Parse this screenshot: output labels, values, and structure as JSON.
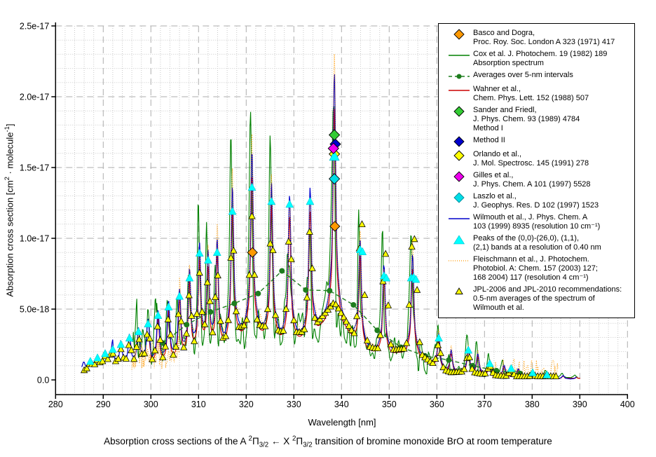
{
  "caption_segments": [
    {
      "t": "Absorption cross sections of the A "
    },
    {
      "t": "2",
      "s": "sup"
    },
    {
      "t": "Π"
    },
    {
      "t": "3/2",
      "s": "sub"
    },
    {
      "t": " ← X "
    },
    {
      "t": "2",
      "s": "sup"
    },
    {
      "t": "Π"
    },
    {
      "t": "3/2",
      "s": "sub"
    },
    {
      "t": " transition of bromine monoxide BrO at room temperature"
    }
  ],
  "chart": {
    "colors": {
      "blue_line": "#0000cc",
      "red_line": "#cc0000",
      "green_line": "#008000",
      "avg_green": "#1e7d1e",
      "orange": "#ff9900",
      "yellow": "#ffff00",
      "cyan": "#00ffff",
      "magenta": "#ee00ee",
      "bright_green": "#33cc33",
      "blue_diamond": "#0000cc",
      "cyan_diamond": "#00dde6",
      "grid_minor": "#c9c9c9",
      "grid_major": "#aeaeae",
      "axis": "#000000"
    },
    "x_axis": {
      "min": 280,
      "max": 400,
      "major_step": 10,
      "minor_step": 2,
      "tick_labels": [
        "280",
        "290",
        "300",
        "310",
        "320",
        "330",
        "340",
        "350",
        "360",
        "370",
        "380",
        "390",
        "400"
      ]
    },
    "y_axis": {
      "tick_values_e18": [
        0,
        5,
        10,
        15,
        20,
        25
      ],
      "tick_labels": [
        "0.0",
        "5.0e-18",
        "1.0e-17",
        "1.5e-17",
        "2.0e-17",
        "2.5e-17"
      ],
      "minor_step_e18": 1,
      "label_segments": [
        {
          "t": "Absorption cross section [cm"
        },
        {
          "t": "2",
          "s": "sup"
        },
        {
          "t": " · molecule"
        },
        {
          "t": "-1",
          "s": "sup"
        },
        {
          "t": "]"
        }
      ]
    },
    "legend": {
      "entries": [
        {
          "icon": "orange-diamond",
          "lines": [
            "Basco and Dogra,",
            "Proc. Roy. Soc. London A 323 (1971) 417"
          ]
        },
        {
          "icon": "green-line",
          "lines": [
            "Cox et al. J. Photochem. 19 (1982) 189",
            "Absorption spectrum"
          ]
        },
        {
          "icon": "green-dash-dot",
          "lines": [
            "Averages over 5-nm intervals"
          ]
        },
        {
          "icon": "red-line",
          "lines": [
            "Wahner et al.,",
            "Chem. Phys. Lett. 152 (1988) 507"
          ]
        },
        {
          "icon": "bright-green-diamond",
          "lines": [
            "Sander and Friedl,",
            "J. Phys. Chem. 93 (1989) 4784",
            "Method I"
          ]
        },
        {
          "icon": "blue-diamond",
          "lines": [
            "Method II"
          ]
        },
        {
          "icon": "yellow-diamond",
          "lines": [
            "Orlando et al.,",
            "J. Mol. Spectrosc. 145 (1991) 278"
          ]
        },
        {
          "icon": "magenta-diamond",
          "lines": [
            "Gilles et al.,",
            "J. Phys. Chem. A 101 (1997) 5528"
          ]
        },
        {
          "icon": "cyan-diamond",
          "lines": [
            "Laszlo et al.,",
            "J. Geophys. Res. D 102 (1997) 1523"
          ]
        },
        {
          "icon": "blue-line",
          "lines": [
            "Wilmouth et al., J. Phys. Chem. A",
            "103 (1999) 8935 (resolution 10 cm⁻¹)"
          ]
        },
        {
          "icon": "cyan-triangle",
          "lines": [
            "Peaks of the (0,0)-(26,0), (1,1),",
            "(2,1) bands at a resolution of 0.40 nm"
          ]
        },
        {
          "icon": "orange-dotted-line",
          "lines": [
            "Fleischmann et al., J. Photochem.",
            "Photobiol. A: Chem. 157 (2003) 127;",
            "168 2004) 117 (resolution 4 cm⁻¹)"
          ]
        },
        {
          "icon": "yellow-triangle",
          "lines": [
            "JPL-2006 and JPL-2010 recommendations:",
            "0.5-nm averages of the spectrum of",
            "Wilmouth et al."
          ]
        }
      ]
    }
  },
  "chart_data": {
    "type": "line",
    "title": "",
    "xlabel": "Wavelength [nm]",
    "ylabel": "Absorption cross section [cm2 · molecule-1]",
    "xlim": [
      280,
      400
    ],
    "ylim_e18": [
      -1.05,
      25
    ],
    "grid": true,
    "legend_position": "top-right",
    "series": [
      {
        "name": "Wilmouth et al., J. Phys. Chem. A 103 (1999) 8935 (resolution 10 cm-1)",
        "type": "line",
        "color": "#0000cc",
        "range_nm": [
          285.5,
          389.4
        ],
        "peaks_nm_e18": [
          [
            285.9,
            1.25
          ],
          [
            287.3,
            1.45
          ],
          [
            288.8,
            1.7
          ],
          [
            290.4,
            2.0
          ],
          [
            292.0,
            2.35
          ],
          [
            293.7,
            2.75
          ],
          [
            295.5,
            3.2
          ],
          [
            297.4,
            3.7
          ],
          [
            299.4,
            4.3
          ],
          [
            301.5,
            4.95
          ],
          [
            303.7,
            5.6
          ],
          [
            306.0,
            6.45
          ],
          [
            308.1,
            7.9
          ],
          [
            310.2,
            9.65
          ],
          [
            312.0,
            9.1
          ],
          [
            313.9,
            9.95
          ],
          [
            317.1,
            13.7
          ],
          [
            321.2,
            16.25
          ],
          [
            325.3,
            14.0
          ],
          [
            329.1,
            13.1
          ],
          [
            333.4,
            13.6
          ],
          [
            338.5,
            21.8
          ],
          [
            343.9,
            9.95
          ],
          [
            348.9,
            8.15
          ],
          [
            354.9,
            8.9
          ],
          [
            360.4,
            3.3
          ],
          [
            363.0,
            2.1
          ],
          [
            366.6,
            2.35
          ],
          [
            368.6,
            1.85
          ],
          [
            371.1,
            1.35
          ],
          [
            374.1,
            1.05
          ],
          [
            377.1,
            0.8
          ],
          [
            380.1,
            0.6
          ],
          [
            383.1,
            0.45
          ],
          [
            386.5,
            0.3
          ],
          [
            389.3,
            0.2
          ]
        ]
      },
      {
        "name": "Wahner et al., Chem. Phys. Lett. 152 (1988) 507",
        "type": "line",
        "color": "#cc0000",
        "scale_of_main": 0.88,
        "range_nm": [
          299.6,
          390.2
        ]
      },
      {
        "name": "Cox et al. J. Photochem. 19 (1982) 189 Absorption spectrum",
        "type": "noisy-line",
        "color": "#008000",
        "range_nm": [
          296.2,
          389.6
        ]
      },
      {
        "name": "Averages over 5-nm intervals",
        "type": "dashed-line-with-dots",
        "color": "#1e7d1e",
        "points_nm_e18": [
          [
            302.5,
            2.6
          ],
          [
            307.5,
            3.9
          ],
          [
            312.5,
            4.8
          ],
          [
            317.5,
            5.4
          ],
          [
            322.5,
            6.1
          ],
          [
            327.5,
            7.7
          ],
          [
            332.5,
            6.35
          ],
          [
            337.5,
            6.3
          ],
          [
            342.5,
            5.3
          ],
          [
            347.5,
            3.5
          ],
          [
            352.5,
            2.3
          ],
          [
            357.5,
            1.7
          ],
          [
            362.5,
            1.4
          ],
          [
            367.5,
            1.0
          ],
          [
            372.5,
            0.65
          ],
          [
            377.5,
            0.45
          ]
        ]
      },
      {
        "name": "Fleischmann et al., J. Photochem. Photobiol. A: Chem. 157 (2003) 127; 168 2004) 117 (resolution 4 cm-1)",
        "type": "dotted-line",
        "color": "#ff9900",
        "range_nm": [
          296.0,
          385.5
        ]
      },
      {
        "name": "JPL-2006 and JPL-2010 recommendations: 0.5-nm averages of the spectrum of Wilmouth et al.",
        "type": "scatter-triangle",
        "color": "#ffff00",
        "sample_range_nm": [
          286.0,
          385.3
        ],
        "sample_step_nm": 0.55
      },
      {
        "name": "Peaks of the (0,0)-(26,0), (1,1), (2,1) bands at a resolution of 0.40 nm",
        "type": "scatter-triangle",
        "color": "#00ffff",
        "points_nm_e18": [
          [
            287.3,
            1.3
          ],
          [
            288.8,
            1.55
          ],
          [
            290.4,
            1.85
          ],
          [
            292.0,
            2.15
          ],
          [
            293.7,
            2.5
          ],
          [
            295.5,
            2.95
          ],
          [
            297.4,
            3.4
          ],
          [
            299.4,
            3.95
          ],
          [
            301.5,
            4.55
          ],
          [
            303.7,
            5.15
          ],
          [
            306.0,
            5.9
          ],
          [
            308.1,
            7.2
          ],
          [
            310.2,
            8.95
          ],
          [
            312.0,
            8.45
          ],
          [
            313.9,
            9.0
          ],
          [
            317.1,
            11.9
          ],
          [
            321.2,
            13.6
          ],
          [
            325.3,
            12.6
          ],
          [
            329.1,
            12.4
          ],
          [
            333.4,
            12.6
          ],
          [
            343.9,
            9.2
          ],
          [
            344.4,
            9.05
          ],
          [
            348.9,
            7.35
          ],
          [
            349.4,
            7.2
          ],
          [
            354.6,
            7.2
          ],
          [
            355.1,
            7.25
          ],
          [
            355.6,
            7.1
          ],
          [
            360.4,
            2.95
          ],
          [
            366.6,
            2.1
          ],
          [
            371.1,
            1.15
          ],
          [
            375.6,
            0.8
          ],
          [
            380.1,
            0.5
          ],
          [
            383.1,
            0.35
          ]
        ],
        "big_peak_nm_e18": [
          338.5,
          15.8
        ]
      },
      {
        "name": "Basco and Dogra, Proc. Roy. Soc. London A 323 (1971) 417",
        "type": "scatter-diamond",
        "color": "#ff9900",
        "points_nm_e18": [
          [
            321.3,
            9.0
          ],
          [
            338.6,
            10.85
          ]
        ]
      },
      {
        "name": "Sander and Friedl, J. Phys. Chem. 93 (1989) 4784 Method I",
        "type": "scatter-diamond",
        "color": "#33cc33",
        "points_nm_e18": [
          [
            338.5,
            17.3
          ]
        ]
      },
      {
        "name": "Sander and Friedl Method II",
        "type": "scatter-diamond",
        "color": "#0000cc",
        "points_nm_e18": [
          [
            338.7,
            16.65
          ]
        ]
      },
      {
        "name": "Orlando et al., J. Mol. Spectrosc. 145 (1991) 278",
        "type": "scatter-diamond",
        "color": "#ffff00",
        "points_nm_e18": [
          [
            338.5,
            15.95
          ]
        ]
      },
      {
        "name": "Gilles et al., J. Phys. Chem. A 101 (1997) 5528",
        "type": "scatter-diamond",
        "color": "#ee00ee",
        "points_nm_e18": [
          [
            338.3,
            16.35
          ]
        ]
      },
      {
        "name": "Laszlo et al., J. Geophys. Res. D 102 (1997) 1523",
        "type": "scatter-diamond",
        "color": "#00dde6",
        "points_nm_e18": [
          [
            338.5,
            14.2
          ]
        ]
      }
    ]
  }
}
